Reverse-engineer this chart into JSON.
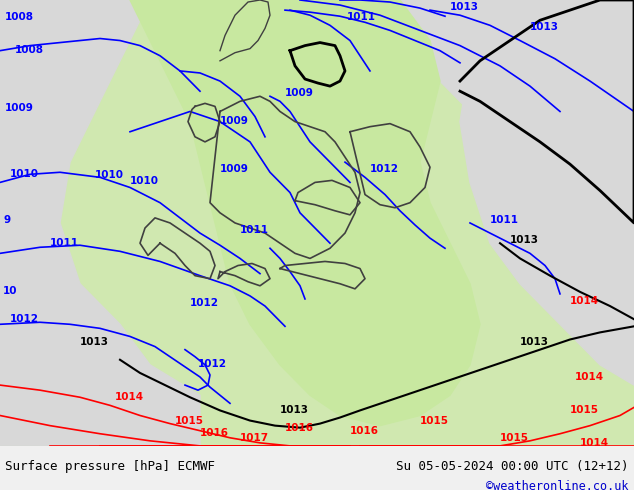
{
  "title_left": "Surface pressure [hPa] ECMWF",
  "title_right": "Su 05-05-2024 00:00 UTC (12+12)",
  "credit": "©weatheronline.co.uk",
  "bg_color": "#d0e8b0",
  "land_color": "#e8e8e8",
  "sea_color": "#d0e8b0",
  "highlight_color": "#c8e8a0",
  "border_color": "#000000",
  "blue_line_color": "#0000ff",
  "red_line_color": "#ff0000",
  "black_line_color": "#000000",
  "label_blue": "#0000ff",
  "label_red": "#ff0000",
  "label_black": "#000000",
  "credit_color": "#0000cc",
  "footer_bg": "#f0f0f0",
  "title_fontsize": 9,
  "label_fontsize": 8.5
}
